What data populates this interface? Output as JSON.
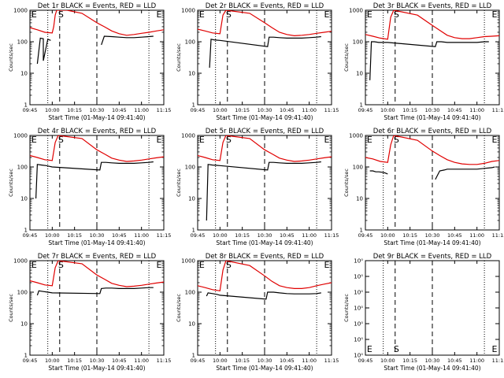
{
  "chart_data": [
    {
      "type": "line",
      "title": "Det 1r BLACK = Events, RED = LLD",
      "xlabel": "Start Time (01-May-14 09:41:40)",
      "ylabel": "Counts/sec",
      "x_ticks": [
        "09:45",
        "10:00",
        "10:15",
        "10:30",
        "10:45",
        "11:00",
        "11:15"
      ],
      "y_ticks": [
        "1",
        "10",
        "100",
        "1000"
      ],
      "y_scale": "log",
      "ylim": [
        1,
        1000
      ],
      "markers": [
        "E",
        "S",
        "E"
      ],
      "series": [
        {
          "color": "#000000",
          "x": [
            "09:45",
            "09:48",
            "09:49",
            "09:50",
            "09:50",
            "09:52",
            "09:54",
            "09:54",
            "09:57",
            "09:58",
            "09:59",
            "10:00",
            "10:01",
            "10:02",
            "10:03",
            "10:04",
            "10:04",
            "10:06",
            "10:06",
            "10:07",
            "10:07",
            "10:30",
            "10:31",
            "10:32",
            "10:33",
            "10:33",
            "10:35",
            "10:40",
            "10:45",
            "10:50",
            "10:55",
            "11:00",
            "11:05",
            "11:08"
          ],
          "values": [
            null,
            null,
            null,
            null,
            20,
            130,
            125,
            25,
            120,
            115,
            110,
            null,
            null,
            null,
            null,
            null,
            null,
            null,
            null,
            null,
            null,
            null,
            null,
            null,
            null,
            80,
            150,
            145,
            140,
            135,
            135,
            140,
            145,
            150
          ]
        },
        {
          "color": "#e00000",
          "x": [
            "09:45",
            "09:50",
            "09:55",
            "10:00",
            "10:01",
            "10:02",
            "10:03",
            "10:04",
            "10:10",
            "10:20",
            "10:30",
            "10:35",
            "10:40",
            "10:45",
            "10:50",
            "10:55",
            "11:00",
            "11:05",
            "11:10",
            "11:15"
          ],
          "values": [
            280,
            240,
            200,
            190,
            300,
            700,
            1000,
            1000,
            1000,
            800,
            400,
            300,
            220,
            180,
            160,
            170,
            185,
            200,
            220,
            240
          ]
        }
      ]
    },
    {
      "type": "line",
      "title": "Det 2r BLACK = Events, RED = LLD",
      "xlabel": "Start Time (01-May-14 09:41:40)",
      "ylabel": "Counts/sec",
      "x_ticks": [
        "09:45",
        "10:00",
        "10:15",
        "10:30",
        "10:45",
        "11:00",
        "11:15"
      ],
      "y_ticks": [
        "1",
        "10",
        "100",
        "1000"
      ],
      "y_scale": "log",
      "ylim": [
        1,
        1000
      ],
      "markers": [
        "E",
        "S",
        "E"
      ],
      "series": [
        {
          "color": "#000000",
          "x": [
            "09:53",
            "09:54",
            "09:56",
            "09:58",
            "10:00",
            "10:32",
            "10:33",
            "10:36",
            "10:40",
            "10:45",
            "10:50",
            "10:55",
            "11:00",
            "11:05",
            "11:08"
          ],
          "values": [
            15,
            120,
            115,
            112,
            110,
            70,
            140,
            140,
            135,
            130,
            130,
            130,
            135,
            140,
            145
          ]
        },
        {
          "color": "#e00000",
          "x": [
            "09:45",
            "09:50",
            "09:55",
            "10:00",
            "10:02",
            "10:04",
            "10:20",
            "10:30",
            "10:35",
            "10:40",
            "10:45",
            "10:50",
            "10:55",
            "11:00",
            "11:05",
            "11:10",
            "11:15"
          ],
          "values": [
            250,
            220,
            190,
            180,
            700,
            1000,
            800,
            400,
            280,
            200,
            170,
            155,
            160,
            170,
            185,
            200,
            215
          ]
        }
      ]
    },
    {
      "type": "line",
      "title": "Det 3r BLACK = Events, RED = LLD",
      "xlabel": "Start Time (01-May-14 09:41:40)",
      "ylabel": "Counts/sec",
      "x_ticks": [
        "09:45",
        "10:00",
        "10:15",
        "10:30",
        "10:45",
        "11:00",
        "11:15"
      ],
      "y_ticks": [
        "1",
        "10",
        "100",
        "1000"
      ],
      "y_scale": "log",
      "ylim": [
        1,
        1000
      ],
      "markers": [
        "E",
        "S",
        "E"
      ],
      "series": [
        {
          "color": "#000000",
          "x": [
            "09:48",
            "09:49",
            "09:51",
            "09:54",
            "09:57",
            "10:00",
            "10:32",
            "10:33",
            "10:36",
            "10:40",
            "10:45",
            "10:50",
            "10:55",
            "11:00",
            "11:05",
            "11:08"
          ],
          "values": [
            6,
            100,
            100,
            95,
            95,
            95,
            70,
            100,
            100,
            95,
            95,
            95,
            95,
            95,
            100,
            100
          ]
        },
        {
          "color": "#e00000",
          "x": [
            "09:45",
            "09:50",
            "09:55",
            "10:00",
            "10:02",
            "10:04",
            "10:20",
            "10:30",
            "10:35",
            "10:40",
            "10:45",
            "10:50",
            "10:55",
            "11:00",
            "11:05",
            "11:10",
            "11:15"
          ],
          "values": [
            170,
            150,
            130,
            120,
            600,
            1000,
            700,
            330,
            230,
            160,
            135,
            125,
            125,
            135,
            145,
            150,
            155
          ]
        }
      ]
    },
    {
      "type": "line",
      "title": "Det 4r BLACK = Events, RED = LLD",
      "xlabel": "Start Time (01-May-14 09:41:40)",
      "ylabel": "Counts/sec",
      "x_ticks": [
        "09:45",
        "10:00",
        "10:15",
        "10:30",
        "10:45",
        "11:00",
        "11:15"
      ],
      "y_ticks": [
        "1",
        "10",
        "100",
        "1000"
      ],
      "y_scale": "log",
      "ylim": [
        1,
        1000
      ],
      "markers": [
        "E",
        "S",
        "E"
      ],
      "series": [
        {
          "color": "#000000",
          "x": [
            "09:49",
            "09:50",
            "09:53",
            "09:56",
            "09:58",
            "10:00",
            "10:32",
            "10:33",
            "10:36",
            "10:40",
            "10:45",
            "10:50",
            "10:55",
            "11:00",
            "11:05",
            "11:08"
          ],
          "values": [
            10,
            120,
            115,
            110,
            105,
            100,
            80,
            140,
            140,
            135,
            130,
            130,
            130,
            135,
            140,
            145
          ]
        },
        {
          "color": "#e00000",
          "x": [
            "09:45",
            "09:50",
            "09:55",
            "10:00",
            "10:02",
            "10:04",
            "10:20",
            "10:30",
            "10:35",
            "10:40",
            "10:45",
            "10:50",
            "10:55",
            "11:00",
            "11:05",
            "11:10",
            "11:15"
          ],
          "values": [
            230,
            200,
            170,
            160,
            600,
            1000,
            800,
            350,
            260,
            190,
            165,
            150,
            155,
            165,
            180,
            195,
            210
          ]
        }
      ]
    },
    {
      "type": "line",
      "title": "Det 5r BLACK = Events, RED = LLD",
      "xlabel": "Start Time (01-May-14 09:41:40)",
      "ylabel": "Counts/sec",
      "x_ticks": [
        "09:45",
        "10:00",
        "10:15",
        "10:30",
        "10:45",
        "11:00",
        "11:15"
      ],
      "y_ticks": [
        "1",
        "10",
        "100",
        "1000"
      ],
      "y_scale": "log",
      "ylim": [
        1,
        1000
      ],
      "markers": [
        "E",
        "S",
        "E"
      ],
      "series": [
        {
          "color": "#000000",
          "x": [
            "09:51",
            "09:52",
            "09:55",
            "09:58",
            "10:00",
            "10:32",
            "10:33",
            "10:36",
            "10:40",
            "10:45",
            "10:50",
            "10:55",
            "11:00",
            "11:05",
            "11:08"
          ],
          "values": [
            2,
            120,
            115,
            112,
            110,
            80,
            140,
            140,
            135,
            130,
            130,
            130,
            135,
            140,
            145
          ]
        },
        {
          "color": "#e00000",
          "x": [
            "09:45",
            "09:50",
            "09:55",
            "10:00",
            "10:02",
            "10:04",
            "10:20",
            "10:30",
            "10:35",
            "10:40",
            "10:45",
            "10:50",
            "10:55",
            "11:00",
            "11:05",
            "11:10",
            "11:15"
          ],
          "values": [
            230,
            200,
            170,
            160,
            600,
            1000,
            800,
            350,
            260,
            190,
            165,
            150,
            155,
            165,
            180,
            195,
            210
          ]
        }
      ]
    },
    {
      "type": "line",
      "title": "Det 6r BLACK = Events, RED = LLD",
      "xlabel": "Start Time (01-May-14 09:41:40)",
      "ylabel": "Counts/sec",
      "x_ticks": [
        "09:45",
        "10:00",
        "10:15",
        "10:30",
        "10:45",
        "11:00",
        "11:15"
      ],
      "y_ticks": [
        "1",
        "10",
        "100",
        "1000"
      ],
      "y_scale": "log",
      "ylim": [
        1,
        1000
      ],
      "markers": [
        "E",
        "S",
        "E"
      ],
      "series": [
        {
          "color": "#000000",
          "x": [
            "09:45",
            "09:47",
            "09:48",
            "09:50",
            "09:52",
            "09:54",
            "09:56",
            "09:58",
            "10:00",
            "10:30",
            "10:31",
            "10:32",
            "10:35",
            "10:38",
            "10:40",
            "10:45",
            "10:50",
            "10:55",
            "11:00",
            "11:05",
            "11:10",
            "11:12"
          ],
          "values": [
            null,
            null,
            75,
            75,
            70,
            70,
            68,
            65,
            60,
            null,
            null,
            40,
            75,
            80,
            85,
            85,
            85,
            85,
            85,
            90,
            95,
            100
          ]
        },
        {
          "color": "#e00000",
          "x": [
            "09:45",
            "09:50",
            "09:55",
            "10:00",
            "10:02",
            "10:04",
            "10:20",
            "10:30",
            "10:35",
            "10:40",
            "10:45",
            "10:50",
            "10:55",
            "11:00",
            "11:05",
            "11:10",
            "11:15"
          ],
          "values": [
            200,
            180,
            150,
            140,
            500,
            1000,
            700,
            320,
            230,
            170,
            140,
            125,
            120,
            120,
            130,
            150,
            160
          ]
        }
      ]
    },
    {
      "type": "line",
      "title": "Det 7r BLACK = Events, RED = LLD",
      "xlabel": "Start Time (01-May-14 09:41:40)",
      "ylabel": "Counts/sec",
      "x_ticks": [
        "09:45",
        "10:00",
        "10:15",
        "10:30",
        "10:45",
        "11:00",
        "11:15"
      ],
      "y_ticks": [
        "1",
        "10",
        "100",
        "1000"
      ],
      "y_scale": "log",
      "ylim": [
        1,
        1000
      ],
      "markers": [
        "E",
        "S",
        "E"
      ],
      "series": [
        {
          "color": "#000000",
          "x": [
            "09:50",
            "09:51",
            "09:54",
            "09:57",
            "10:00",
            "10:32",
            "10:33",
            "10:36",
            "10:40",
            "10:45",
            "10:50",
            "10:55",
            "11:00",
            "11:05",
            "11:08"
          ],
          "values": [
            80,
            110,
            105,
            100,
            95,
            90,
            130,
            135,
            135,
            130,
            130,
            130,
            135,
            140,
            140
          ]
        },
        {
          "color": "#e00000",
          "x": [
            "09:45",
            "09:50",
            "09:55",
            "10:00",
            "10:02",
            "10:04",
            "10:20",
            "10:30",
            "10:35",
            "10:40",
            "10:45",
            "10:50",
            "10:55",
            "11:00",
            "11:05",
            "11:10",
            "11:15"
          ],
          "values": [
            230,
            200,
            170,
            160,
            600,
            1000,
            800,
            350,
            260,
            190,
            165,
            150,
            155,
            165,
            180,
            195,
            210
          ]
        }
      ]
    },
    {
      "type": "line",
      "title": "Det 8r BLACK = Events, RED = LLD",
      "xlabel": "Start Time (01-May-14 09:41:40)",
      "ylabel": "Counts/sec",
      "x_ticks": [
        "09:45",
        "10:00",
        "10:15",
        "10:30",
        "10:45",
        "11:00",
        "11:15"
      ],
      "y_ticks": [
        "1",
        "10",
        "100",
        "1000"
      ],
      "y_scale": "log",
      "ylim": [
        1,
        1000
      ],
      "markers": [
        "E",
        "S",
        "E"
      ],
      "series": [
        {
          "color": "#000000",
          "x": [
            "09:51",
            "09:52",
            "09:55",
            "09:58",
            "10:00",
            "10:31",
            "10:32",
            "10:36",
            "10:40",
            "10:45",
            "10:50",
            "10:55",
            "11:00",
            "11:05",
            "11:08"
          ],
          "values": [
            75,
            95,
            90,
            85,
            80,
            60,
            100,
            100,
            95,
            90,
            88,
            88,
            88,
            90,
            95
          ]
        },
        {
          "color": "#e00000",
          "x": [
            "09:45",
            "09:50",
            "09:55",
            "10:00",
            "10:02",
            "10:04",
            "10:20",
            "10:30",
            "10:35",
            "10:40",
            "10:45",
            "10:50",
            "10:55",
            "11:00",
            "11:05",
            "11:10",
            "11:15"
          ],
          "values": [
            160,
            140,
            120,
            110,
            500,
            1000,
            700,
            330,
            220,
            160,
            140,
            130,
            130,
            140,
            160,
            180,
            200
          ]
        }
      ]
    },
    {
      "type": "line",
      "title": "Det 9r BLACK = Events, RED = LLD",
      "xlabel": "Start Time (01-May-14 09:41:40)",
      "ylabel": "Counts/sec",
      "x_ticks": [
        "09:45",
        "10:00",
        "10:15",
        "10:30",
        "10:45",
        "11:00",
        "11:15"
      ],
      "y_ticks": [
        "10⁰",
        "10⁰",
        "10⁰",
        "10⁰",
        "10⁰",
        "10⁰",
        "10⁰"
      ],
      "y_scale": "linear",
      "markers": [
        "E",
        "S",
        "E"
      ],
      "series": []
    }
  ]
}
